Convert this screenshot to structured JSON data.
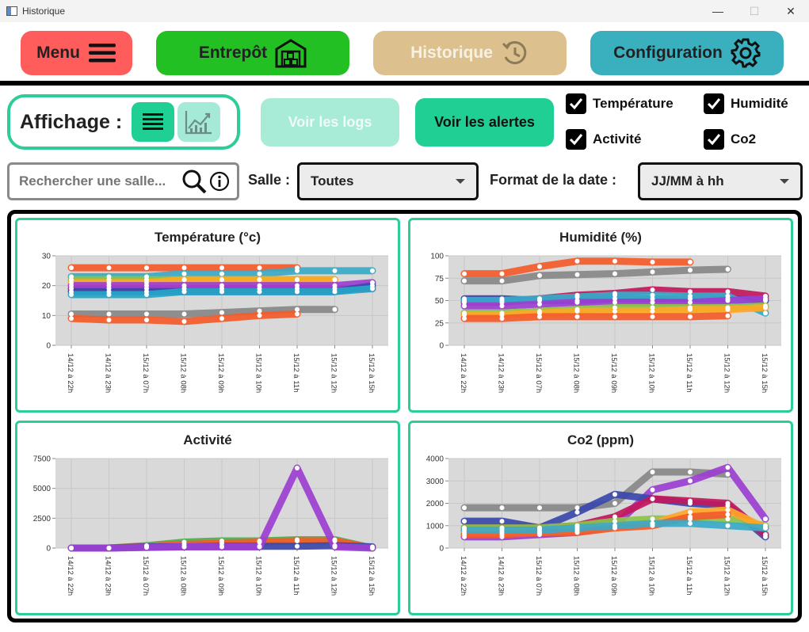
{
  "window": {
    "title": "Historique",
    "controls": [
      "—",
      "☐",
      "✕"
    ]
  },
  "nav": {
    "menu": {
      "label": "Menu",
      "icon": "hamburger-icon",
      "color": "#ff5c5c"
    },
    "entrepot": {
      "label": "Entrepôt",
      "icon": "warehouse-icon",
      "color": "#22c022"
    },
    "historique": {
      "label": "Historique",
      "icon": "history-icon",
      "color": "#dcc08e"
    },
    "configuration": {
      "label": "Configuration",
      "icon": "gear-icon",
      "color": "#3ab0bf"
    }
  },
  "display": {
    "label": "Affichage :",
    "list_icon": "list-icon",
    "chart_icon": "chart-icon"
  },
  "actions": {
    "logs": "Voir les logs",
    "alerts": "Voir les alertes"
  },
  "filters": {
    "temperature": {
      "label": "Température",
      "checked": true
    },
    "humidite": {
      "label": "Humidité",
      "checked": true
    },
    "activite": {
      "label": "Activité",
      "checked": true
    },
    "co2": {
      "label": "Co2",
      "checked": true
    }
  },
  "search": {
    "placeholder": "Rechercher une salle..."
  },
  "salle": {
    "label": "Salle :",
    "value": "Toutes"
  },
  "date_format": {
    "label": "Format de la date :",
    "value": "JJ/MM à hh"
  },
  "chart_data": [
    {
      "type": "line",
      "title": "Température (°c)",
      "categories": [
        "14/12 à 22h",
        "14/12 à 23h",
        "15/12 à 07h",
        "15/12 à 08h",
        "15/12 à 09h",
        "15/12 à 10h",
        "15/12 à 11h",
        "15/12 à 12h",
        "15/12 à 15h"
      ],
      "ylim": [
        0,
        30
      ],
      "yticks": [
        0,
        10,
        20,
        30
      ],
      "series": [
        {
          "color": "#f45b2a",
          "values": [
            26,
            26,
            26,
            26,
            26,
            26,
            26,
            null,
            null
          ]
        },
        {
          "color": "#3aaac8",
          "values": [
            23,
            23,
            23,
            24,
            24,
            24,
            25,
            25,
            25
          ]
        },
        {
          "color": "#8bc34a",
          "values": [
            22,
            22,
            22,
            22,
            22,
            22,
            22,
            22,
            null
          ]
        },
        {
          "color": "#ffa726",
          "values": [
            21,
            21,
            21,
            22,
            22,
            22,
            22,
            22,
            null
          ]
        },
        {
          "color": "#c2185b",
          "values": [
            19,
            19,
            19,
            19,
            19,
            19,
            19,
            19,
            19
          ]
        },
        {
          "color": "#9c3fd1",
          "values": [
            20,
            20,
            20,
            20,
            20,
            20,
            20,
            20,
            21
          ]
        },
        {
          "color": "#3949ab",
          "values": [
            18,
            18,
            18,
            18,
            18,
            18,
            18,
            18,
            20
          ]
        },
        {
          "color": "#26a6c8",
          "values": [
            17,
            17,
            17,
            18,
            18,
            18,
            18,
            18,
            19
          ]
        },
        {
          "color": "#888888",
          "values": [
            10.5,
            10.5,
            10.5,
            10.5,
            11,
            11.5,
            12,
            12,
            null
          ]
        },
        {
          "color": "#f45b2a",
          "values": [
            9,
            8.5,
            8.5,
            8,
            9,
            10,
            10.5,
            null,
            null
          ]
        }
      ]
    },
    {
      "type": "line",
      "title": "Humidité (%)",
      "categories": [
        "14/12 à 22h",
        "14/12 à 23h",
        "15/12 à 07h",
        "15/12 à 08h",
        "15/12 à 09h",
        "15/12 à 10h",
        "15/12 à 11h",
        "15/12 à 12h",
        "15/12 à 15h"
      ],
      "ylim": [
        0,
        100
      ],
      "yticks": [
        0,
        25,
        50,
        75,
        100
      ],
      "series": [
        {
          "color": "#f45b2a",
          "values": [
            80,
            80,
            88,
            94,
            94,
            93,
            93,
            null,
            null
          ]
        },
        {
          "color": "#888888",
          "values": [
            72,
            72,
            78,
            79,
            80,
            82,
            84,
            85,
            null
          ]
        },
        {
          "color": "#c2185b",
          "values": [
            48,
            48,
            52,
            56,
            58,
            62,
            60,
            60,
            55
          ]
        },
        {
          "color": "#3949ab",
          "values": [
            52,
            52,
            50,
            50,
            52,
            52,
            52,
            52,
            50
          ]
        },
        {
          "color": "#3aaac8",
          "values": [
            50,
            50,
            52,
            54,
            56,
            56,
            55,
            55,
            36
          ]
        },
        {
          "color": "#9c3fd1",
          "values": [
            44,
            44,
            46,
            48,
            48,
            48,
            48,
            50,
            52
          ]
        },
        {
          "color": "#8bc34a",
          "values": [
            36,
            36,
            38,
            40,
            42,
            42,
            42,
            42,
            44
          ]
        },
        {
          "color": "#ffa726",
          "values": [
            34,
            34,
            36,
            38,
            38,
            38,
            40,
            40,
            42
          ]
        },
        {
          "color": "#f45b2a",
          "values": [
            30,
            30,
            32,
            32,
            32,
            32,
            32,
            33,
            null
          ]
        }
      ]
    },
    {
      "type": "line",
      "title": "Activité",
      "categories": [
        "14/12 à 22h",
        "14/12 à 23h",
        "15/12 à 07h",
        "15/12 à 08h",
        "15/12 à 09h",
        "15/12 à 10h",
        "15/12 à 11h",
        "15/12 à 12h",
        "15/12 à 15h"
      ],
      "ylim": [
        0,
        7500
      ],
      "yticks": [
        0,
        2500,
        5000,
        7500
      ],
      "series": [
        {
          "color": "#4caf50",
          "values": [
            0,
            0,
            200,
            500,
            600,
            600,
            700,
            700,
            0
          ]
        },
        {
          "color": "#f45b2a",
          "values": [
            0,
            0,
            150,
            300,
            400,
            500,
            600,
            600,
            0
          ]
        },
        {
          "color": "#3949ab",
          "values": [
            0,
            0,
            100,
            100,
            150,
            150,
            150,
            200,
            100
          ]
        },
        {
          "color": "#9c3fd1",
          "values": [
            0,
            0,
            50,
            100,
            100,
            100,
            6700,
            100,
            0
          ]
        }
      ]
    },
    {
      "type": "line",
      "title": "Co2 (ppm)",
      "categories": [
        "14/12 à 22h",
        "14/12 à 23h",
        "15/12 à 07h",
        "15/12 à 08h",
        "15/12 à 09h",
        "15/12 à 10h",
        "15/12 à 11h",
        "15/12 à 12h",
        "15/12 à 15h"
      ],
      "ylim": [
        0,
        4000
      ],
      "yticks": [
        0,
        1000,
        2000,
        3000,
        4000
      ],
      "series": [
        {
          "color": "#888888",
          "values": [
            1800,
            1800,
            1800,
            1800,
            2000,
            3400,
            3400,
            3300,
            null
          ]
        },
        {
          "color": "#9c3fd1",
          "values": [
            500,
            500,
            600,
            700,
            1000,
            2600,
            3000,
            3600,
            1300
          ]
        },
        {
          "color": "#3949ab",
          "values": [
            1200,
            1200,
            900,
            1600,
            2400,
            2200,
            2000,
            1900,
            500
          ]
        },
        {
          "color": "#c2185b",
          "values": [
            900,
            900,
            900,
            1000,
            1400,
            2200,
            2100,
            2000,
            600
          ]
        },
        {
          "color": "#8bc34a",
          "values": [
            900,
            900,
            900,
            1000,
            1200,
            1300,
            1300,
            1300,
            1000
          ]
        },
        {
          "color": "#ffa726",
          "values": [
            700,
            700,
            700,
            800,
            1000,
            1100,
            1600,
            1700,
            900
          ]
        },
        {
          "color": "#f45b2a",
          "values": [
            600,
            600,
            700,
            700,
            900,
            1000,
            1400,
            1500,
            null
          ]
        },
        {
          "color": "#3aaac8",
          "values": [
            800,
            800,
            800,
            900,
            1000,
            1100,
            1100,
            1000,
            900
          ]
        }
      ]
    }
  ]
}
